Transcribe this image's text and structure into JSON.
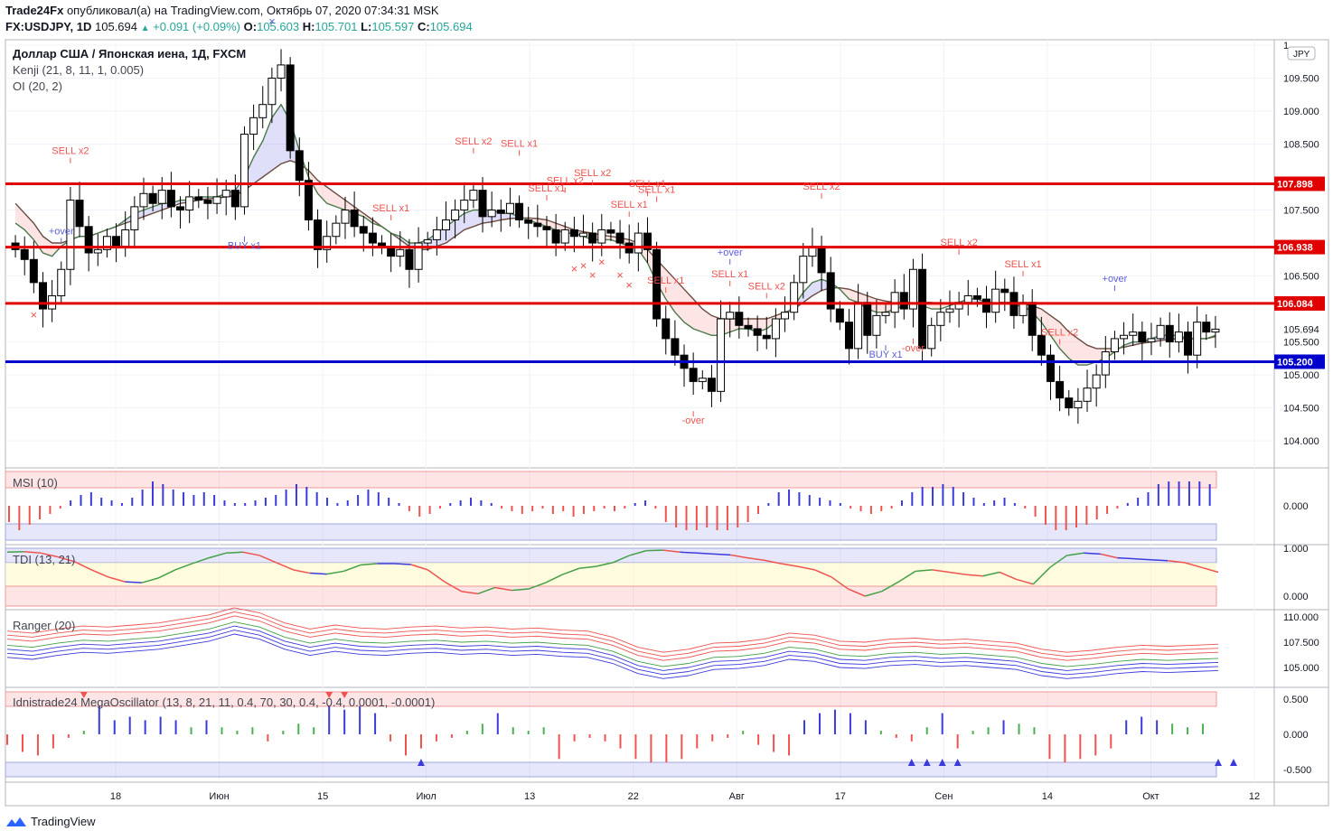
{
  "header": {
    "publisher": "Trade24Fx",
    "published_text": "опубликовал(а) на TradingView.com, Октябрь 07, 2020 07:34:31 MSK",
    "symbol": "FX:USDJPY, 1D",
    "price": "105.694",
    "change": "+0.091 (+0.09%)",
    "o_label": "O:",
    "o": "105.603",
    "h_label": "H:",
    "h": "105.701",
    "l_label": "L:",
    "l": "105.597",
    "c_label": "C:",
    "c": "105.694"
  },
  "legend": {
    "title": "Доллар США / Японская иена, 1Д, FXCM",
    "kenji": "Kenji (21, 8, 11, 1, 0.005)",
    "oi": "OI (20, 2)",
    "msi": "MSI (10)",
    "tdi": "TDI (13, 21)",
    "ranger": "Ranger (20)",
    "mega": "Idnistrade24 MegaOscillator (13, 8, 21, 11, 0.4, 70, 30, 0.4, -0.4, 0.0001, -0.0001)"
  },
  "currency_badge": "JPY",
  "footer": {
    "brand": "TradingView"
  },
  "colors": {
    "up": "#ffffff",
    "down": "#000000",
    "resistance": "#e00000",
    "support": "#0000cc",
    "sell": "#ef5350",
    "buy": "#5b5fd6",
    "kenji_fast": "#4a7a4a",
    "kenji_slow": "#6d4c41"
  },
  "chart_data": [
    {
      "type": "candlestick",
      "title": "Доллар США / Японская иена, 1Д, FXCM",
      "ylim": [
        103.7,
        110.0
      ],
      "y_ticks": [
        "1",
        "109.500",
        "109.000",
        "108.500",
        "107.500",
        "106.500",
        "105.500",
        "105.000",
        "104.500",
        "104.000"
      ],
      "x_ticks": [
        "18",
        "Июн",
        "15",
        "Июл",
        "13",
        "22",
        "Авг",
        "17",
        "Сен",
        "14",
        "Окт",
        "12"
      ],
      "horizontal_levels": [
        {
          "value": 107.898,
          "label": "107.898",
          "color": "#e00000"
        },
        {
          "value": 106.938,
          "label": "106.938",
          "color": "#e00000"
        },
        {
          "value": 106.084,
          "label": "106.084",
          "color": "#e00000"
        },
        {
          "value": 105.2,
          "label": "105.200",
          "color": "#0000cc"
        }
      ],
      "last_price_label": "105.694",
      "close_series": [
        106.9,
        106.75,
        106.4,
        106.0,
        106.2,
        106.6,
        107.65,
        107.25,
        106.85,
        106.9,
        107.1,
        106.95,
        107.2,
        107.55,
        107.75,
        107.6,
        107.8,
        107.55,
        107.5,
        107.7,
        107.65,
        107.6,
        107.7,
        107.8,
        107.55,
        108.65,
        108.9,
        109.1,
        109.5,
        109.7,
        108.4,
        107.95,
        107.35,
        106.9,
        107.1,
        107.3,
        107.5,
        107.25,
        107.15,
        107.0,
        106.95,
        106.8,
        106.9,
        106.6,
        107.0,
        107.05,
        107.2,
        107.35,
        107.5,
        107.65,
        107.8,
        107.4,
        107.5,
        107.45,
        107.6,
        107.35,
        107.3,
        107.25,
        107.2,
        107.0,
        107.2,
        107.1,
        107.15,
        107.0,
        107.2,
        107.15,
        107.0,
        106.85,
        107.15,
        106.9,
        105.85,
        105.55,
        105.3,
        105.1,
        104.9,
        104.95,
        104.75,
        105.85,
        105.95,
        105.75,
        105.7,
        105.6,
        105.55,
        105.85,
        105.95,
        106.4,
        106.8,
        106.95,
        106.55,
        106.0,
        105.8,
        105.4,
        106.1,
        105.6,
        105.9,
        105.95,
        106.25,
        106.0,
        106.6,
        105.4,
        105.75,
        105.95,
        106.0,
        106.1,
        106.2,
        106.15,
        105.95,
        106.3,
        106.25,
        105.9,
        106.1,
        105.6,
        105.3,
        104.9,
        104.65,
        104.5,
        104.6,
        104.8,
        105.0,
        105.35,
        105.55,
        105.6,
        105.65,
        105.5,
        105.55,
        105.75,
        105.5,
        105.65,
        105.3,
        105.8,
        105.65,
        105.694
      ],
      "kenji_fast": [
        107.3,
        107.2,
        107.05,
        106.85,
        106.8,
        106.95,
        107.05,
        107.1,
        107.1,
        107.15,
        107.2,
        107.25,
        107.35,
        107.45,
        107.5,
        107.55,
        107.6,
        107.6,
        107.65,
        107.65,
        107.7,
        107.7,
        107.7,
        107.75,
        107.8,
        108.0,
        108.3,
        108.55,
        108.9,
        109.1,
        108.85,
        108.4,
        108.0,
        107.75,
        107.6,
        107.55,
        107.5,
        107.45,
        107.4,
        107.3,
        107.25,
        107.15,
        107.1,
        107.0,
        107.0,
        107.05,
        107.15,
        107.25,
        107.35,
        107.45,
        107.5,
        107.5,
        107.5,
        107.45,
        107.45,
        107.4,
        107.35,
        107.3,
        107.25,
        107.2,
        107.15,
        107.15,
        107.1,
        107.05,
        107.05,
        107.05,
        107.0,
        106.95,
        106.9,
        106.7,
        106.4,
        106.15,
        105.95,
        105.8,
        105.7,
        105.65,
        105.6,
        105.6,
        105.65,
        105.7,
        105.7,
        105.65,
        105.7,
        105.8,
        105.9,
        106.05,
        106.25,
        106.4,
        106.45,
        106.4,
        106.3,
        106.15,
        106.1,
        106.0,
        105.95,
        105.95,
        106.0,
        106.05,
        106.1,
        106.05,
        106.0,
        106.0,
        106.05,
        106.1,
        106.15,
        106.15,
        106.1,
        106.1,
        106.1,
        106.05,
        106.05,
        105.95,
        105.8,
        105.6,
        105.4,
        105.25,
        105.15,
        105.15,
        105.2,
        105.25,
        105.35,
        105.45,
        105.5,
        105.5,
        105.55,
        105.6,
        105.6,
        105.6,
        105.55,
        105.55,
        105.55,
        105.6
      ],
      "kenji_slow": [
        107.6,
        107.45,
        107.3,
        107.1,
        107.0,
        107.0,
        107.05,
        107.1,
        107.1,
        107.15,
        107.2,
        107.25,
        107.3,
        107.35,
        107.4,
        107.45,
        107.5,
        107.55,
        107.6,
        107.62,
        107.65,
        107.67,
        107.68,
        107.7,
        107.72,
        107.8,
        107.9,
        108.0,
        108.1,
        108.2,
        108.25,
        108.2,
        108.1,
        107.95,
        107.85,
        107.75,
        107.65,
        107.55,
        107.45,
        107.35,
        107.25,
        107.15,
        107.05,
        106.95,
        106.9,
        106.9,
        106.95,
        107.0,
        107.1,
        107.2,
        107.25,
        107.3,
        107.32,
        107.35,
        107.37,
        107.38,
        107.38,
        107.37,
        107.35,
        107.3,
        107.25,
        107.2,
        107.17,
        107.15,
        107.12,
        107.1,
        107.08,
        107.05,
        107.0,
        106.9,
        106.75,
        106.6,
        106.45,
        106.3,
        106.15,
        106.0,
        105.9,
        105.85,
        105.85,
        105.85,
        105.85,
        105.85,
        105.85,
        105.9,
        105.95,
        106.0,
        106.1,
        106.2,
        106.28,
        106.32,
        106.32,
        106.3,
        106.25,
        106.2,
        106.15,
        106.12,
        106.1,
        106.1,
        106.1,
        106.1,
        106.1,
        106.08,
        106.08,
        106.08,
        106.08,
        106.1,
        106.1,
        106.1,
        106.1,
        106.1,
        106.08,
        106.05,
        106.0,
        105.9,
        105.8,
        105.65,
        105.55,
        105.45,
        105.4,
        105.4,
        105.4,
        105.42,
        105.45,
        105.48,
        105.5,
        105.52,
        105.54,
        105.55,
        105.55,
        105.55,
        105.55,
        105.58
      ]
    },
    {
      "type": "bar",
      "title": "MSI (10)",
      "y_ticks": [
        "0.000"
      ],
      "values": [
        -0.6,
        -0.9,
        -0.7,
        -0.5,
        -0.3,
        -0.1,
        0.2,
        0.4,
        0.5,
        0.3,
        0.2,
        0.1,
        0.3,
        0.6,
        0.9,
        0.8,
        0.6,
        0.5,
        0.4,
        0.5,
        0.4,
        0.2,
        0.1,
        0.1,
        0.2,
        0.3,
        0.4,
        0.6,
        0.8,
        0.7,
        0.5,
        0.3,
        0.1,
        0.2,
        0.4,
        0.6,
        0.5,
        0.3,
        0.1,
        -0.2,
        -0.4,
        -0.3,
        -0.1,
        0.1,
        0.2,
        0.3,
        0.2,
        0.1,
        -0.1,
        -0.2,
        -0.3,
        -0.2,
        -0.1,
        -0.3,
        -0.2,
        -0.4,
        -0.3,
        -0.2,
        -0.1,
        -0.2,
        -0.1,
        0.1,
        0.2,
        -0.1,
        -0.6,
        -0.8,
        -0.9,
        -0.9,
        -0.8,
        -0.9,
        -0.9,
        -0.8,
        -0.6,
        -0.3,
        0.1,
        0.5,
        0.6,
        0.5,
        0.4,
        0.3,
        0.2,
        0.1,
        -0.1,
        -0.2,
        -0.3,
        -0.2,
        -0.1,
        0.2,
        0.5,
        0.7,
        0.7,
        0.8,
        0.7,
        0.5,
        0.3,
        0.1,
        0.2,
        0.3,
        0.1,
        -0.1,
        -0.4,
        -0.7,
        -0.9,
        -0.9,
        -0.8,
        -0.7,
        -0.5,
        -0.3,
        -0.1,
        0.1,
        0.3,
        0.5,
        0.8,
        0.9,
        0.9,
        0.9,
        0.9,
        0.8
      ],
      "sign_colors": {
        "positive": "#3b3bdb",
        "negative": "#ef5350"
      }
    },
    {
      "type": "line",
      "title": "TDI (13, 21)",
      "y_ticks": [
        "1.000",
        "0.000"
      ],
      "values": [
        0.92,
        0.93,
        0.9,
        0.82,
        0.72,
        0.55,
        0.4,
        0.3,
        0.28,
        0.38,
        0.55,
        0.68,
        0.8,
        0.9,
        0.92,
        0.85,
        0.7,
        0.55,
        0.48,
        0.46,
        0.52,
        0.65,
        0.68,
        0.68,
        0.66,
        0.55,
        0.3,
        0.1,
        0.05,
        0.18,
        0.12,
        0.15,
        0.28,
        0.45,
        0.58,
        0.62,
        0.7,
        0.85,
        0.95,
        0.96,
        0.92,
        0.9,
        0.88,
        0.86,
        0.8,
        0.75,
        0.68,
        0.62,
        0.55,
        0.4,
        0.15,
        0.0,
        0.1,
        0.3,
        0.52,
        0.55,
        0.5,
        0.45,
        0.42,
        0.5,
        0.35,
        0.25,
        0.6,
        0.85,
        0.9,
        0.88,
        0.8,
        0.78,
        0.76,
        0.74,
        0.7,
        0.6,
        0.5
      ]
    },
    {
      "type": "line",
      "title": "Ranger (20)",
      "y_ticks": [
        "110.000",
        "107.500",
        "105.000"
      ],
      "values": [
        107.0,
        106.8,
        107.2,
        107.5,
        107.4,
        107.6,
        107.8,
        108.2,
        108.6,
        109.3,
        108.8,
        107.8,
        107.2,
        107.6,
        107.3,
        107.2,
        107.4,
        107.5,
        107.3,
        107.4,
        107.2,
        107.3,
        107.1,
        107.0,
        106.4,
        105.4,
        104.9,
        105.2,
        105.8,
        105.9,
        106.2,
        106.8,
        106.6,
        106.0,
        105.9,
        106.2,
        106.3,
        106.1,
        106.2,
        106.0,
        105.8,
        105.2,
        104.9,
        105.1,
        105.4,
        105.6,
        105.5,
        105.6,
        105.7
      ]
    },
    {
      "type": "bar",
      "title": "Idnistrade24 MegaOscillator (13, 8, 21, 11, 0.4, 70, 30, 0.4, -0.4, 0.0001, -0.0001)",
      "y_ticks": [
        "0.500",
        "0.000",
        "-0.500"
      ],
      "values": [
        -0.15,
        -0.25,
        -0.3,
        -0.2,
        -0.05,
        0.05,
        0.4,
        0.2,
        0.25,
        0.2,
        0.25,
        0.2,
        0.1,
        0.2,
        0.1,
        0.05,
        0.1,
        -0.1,
        0.05,
        0.15,
        0.1,
        0.4,
        0.35,
        0.4,
        0.3,
        -0.1,
        -0.3,
        -0.2,
        -0.1,
        -0.05,
        0.05,
        0.15,
        0.3,
        0.1,
        0.05,
        0.1,
        -0.35,
        -0.1,
        -0.05,
        -0.1,
        -0.2,
        -0.35,
        -0.4,
        -0.4,
        -0.35,
        -0.2,
        -0.1,
        -0.05,
        0.05,
        -0.15,
        -0.25,
        -0.3,
        0.2,
        0.3,
        0.35,
        0.3,
        0.2,
        0.05,
        -0.05,
        -0.1,
        0.1,
        0.3,
        -0.2,
        0.05,
        0.1,
        0.2,
        0.15,
        0.1,
        -0.35,
        -0.4,
        -0.35,
        -0.3,
        -0.2,
        0.2,
        0.25,
        0.2,
        0.15,
        0.1,
        0.15
      ],
      "sign_colors": {
        "strong_positive": "#3b3bdb",
        "weak_positive": "#4caf50",
        "negative": "#ef5350"
      }
    }
  ],
  "signals": [
    {
      "text": "+over",
      "color": "#5b5fd6"
    },
    {
      "text": "SELL x2",
      "color": "#ef5350"
    },
    {
      "text": "BUY x1",
      "color": "#5b5fd6"
    },
    {
      "text": "SELL x1",
      "color": "#ef5350"
    },
    {
      "text": "SELL x2",
      "color": "#ef5350"
    },
    {
      "text": "SELL x1",
      "color": "#ef5350"
    },
    {
      "text": "SELL x1",
      "color": "#ef5350"
    },
    {
      "text": "SELL x2",
      "color": "#ef5350"
    },
    {
      "text": "SELL x2",
      "color": "#ef5350"
    },
    {
      "text": "SELL x1",
      "color": "#ef5350"
    },
    {
      "text": "SELL x1",
      "color": "#ef5350"
    },
    {
      "text": "SELL x1",
      "color": "#ef5350"
    },
    {
      "text": "SELL x1",
      "color": "#ef5350"
    },
    {
      "text": "-over",
      "color": "#ef5350"
    },
    {
      "text": "+over",
      "color": "#5b5fd6"
    },
    {
      "text": "SELL x1",
      "color": "#ef5350"
    },
    {
      "text": "SELL x2",
      "color": "#ef5350"
    },
    {
      "text": "SELL x2",
      "color": "#ef5350"
    },
    {
      "text": "BUY x1",
      "color": "#5b5fd6"
    },
    {
      "text": "-over",
      "color": "#ef5350"
    },
    {
      "text": "SELL x2",
      "color": "#ef5350"
    },
    {
      "text": "SELL x1",
      "color": "#ef5350"
    },
    {
      "text": "SELL x2",
      "color": "#ef5350"
    },
    {
      "text": "+over",
      "color": "#5b5fd6"
    }
  ]
}
